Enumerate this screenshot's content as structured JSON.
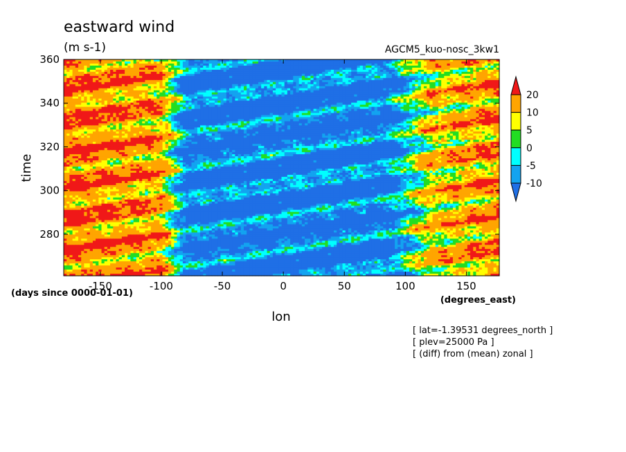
{
  "chart_data": {
    "type": "heatmap",
    "title": "eastward wind",
    "units": "(m s-1)",
    "run_label": "AGCM5_kuo-nosc_3kw1",
    "xlabel": "lon",
    "x_units": "(degrees_east)",
    "ylabel": "time",
    "y_units": "(days since 0000-01-01)",
    "xlim": [
      -180,
      177
    ],
    "ylim": [
      261,
      360
    ],
    "x_ticks": [
      -150,
      -100,
      -50,
      0,
      50,
      100,
      150
    ],
    "y_ticks": [
      280,
      300,
      320,
      340,
      360
    ],
    "colorbar": {
      "levels": [
        -10,
        -5,
        0,
        5,
        10,
        20
      ],
      "colors": [
        "#1f6fe6",
        "#13a3f0",
        "#00ffff",
        "#22dd22",
        "#ffff00",
        "#ffa500",
        "#f01818"
      ],
      "extend": "both"
    },
    "pattern_description": "Westerly (positive) winds over -180 to -110 and 110 to 177 longitude; easterly (negative) winds over -100 to 100 with eastward-tilted streaks.",
    "annotations": [
      "[ lat=-1.39531 degrees_north ]",
      "[ plev=25000 Pa ]",
      "[ (diff) from (mean) zonal ]"
    ]
  }
}
